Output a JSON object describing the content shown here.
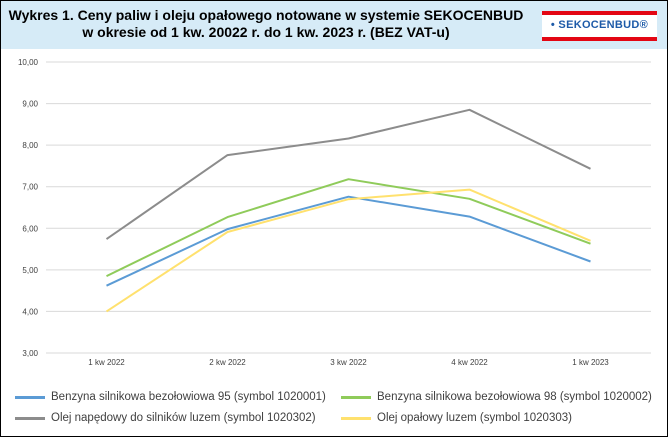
{
  "header": {
    "title_line1": "Wykres 1. Ceny paliw i oleju opałowego notowane w systemie SEKOCENBUD",
    "title_line2": "w okresie od 1 kw. 20022 r. do 1 kw. 2023 r. (BEZ VAT-u)",
    "logo_text": "• SEKOCENBUD®"
  },
  "chart_data": {
    "type": "line",
    "categories": [
      "1 kw 2022",
      "2 kw 2022",
      "3 kw 2022",
      "4 kw 2022",
      "1 kw 2023"
    ],
    "ylim": [
      3,
      10
    ],
    "yticks": [
      "3,00",
      "4,00",
      "5,00",
      "6,00",
      "7,00",
      "8,00",
      "9,00",
      "10,00"
    ],
    "grid": true,
    "legend_position": "bottom",
    "series": [
      {
        "name": "Benzyna silnikowa bezołowiowa 95 (symbol 1020001)",
        "color": "#5b9bd5",
        "values": [
          4.62,
          5.98,
          6.76,
          6.28,
          5.2
        ]
      },
      {
        "name": "Benzyna silnikowa bezołowiowa 98 (symbol 1020002)",
        "color": "#8fcb5a",
        "values": [
          4.85,
          6.27,
          7.18,
          6.71,
          5.63
        ]
      },
      {
        "name": "Olej napędowy do silników luzem (symbol 1020302)",
        "color": "#8c8c8c",
        "values": [
          5.74,
          7.76,
          8.16,
          8.85,
          7.43
        ]
      },
      {
        "name": "Olej opałowy luzem (symbol 1020303)",
        "color": "#ffe16e",
        "values": [
          4.0,
          5.91,
          6.7,
          6.93,
          5.7
        ]
      }
    ]
  }
}
